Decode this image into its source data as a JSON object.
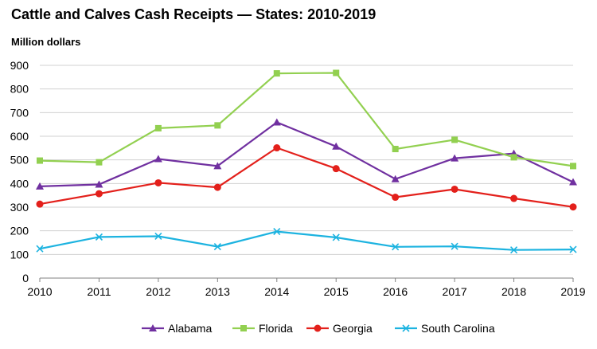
{
  "chart_data": {
    "type": "line",
    "title": "Cattle and Calves Cash Receipts — States: 2010-2019",
    "ylabel": "Million dollars",
    "xlabel": "",
    "ylim": [
      0,
      900
    ],
    "yticks": [
      0,
      100,
      200,
      300,
      400,
      500,
      600,
      700,
      800,
      900
    ],
    "grid": true,
    "legend": "bottom",
    "categories": [
      "2010",
      "2011",
      "2012",
      "2013",
      "2014",
      "2015",
      "2016",
      "2017",
      "2018",
      "2019"
    ],
    "series": [
      {
        "name": "Alabama",
        "color": "#7030a0",
        "marker": "triangle",
        "values": [
          388,
          396,
          504,
          474,
          659,
          557,
          419,
          507,
          527,
          406
        ]
      },
      {
        "name": "Florida",
        "color": "#92d050",
        "marker": "square",
        "values": [
          497,
          490,
          634,
          646,
          866,
          868,
          546,
          585,
          511,
          474
        ]
      },
      {
        "name": "Georgia",
        "color": "#e3201b",
        "marker": "circle",
        "values": [
          313,
          357,
          403,
          384,
          551,
          463,
          342,
          376,
          337,
          301
        ]
      },
      {
        "name": "South Carolina",
        "color": "#1cb3e0",
        "marker": "x",
        "values": [
          124,
          174,
          177,
          133,
          197,
          172,
          132,
          134,
          119,
          121
        ]
      }
    ]
  }
}
